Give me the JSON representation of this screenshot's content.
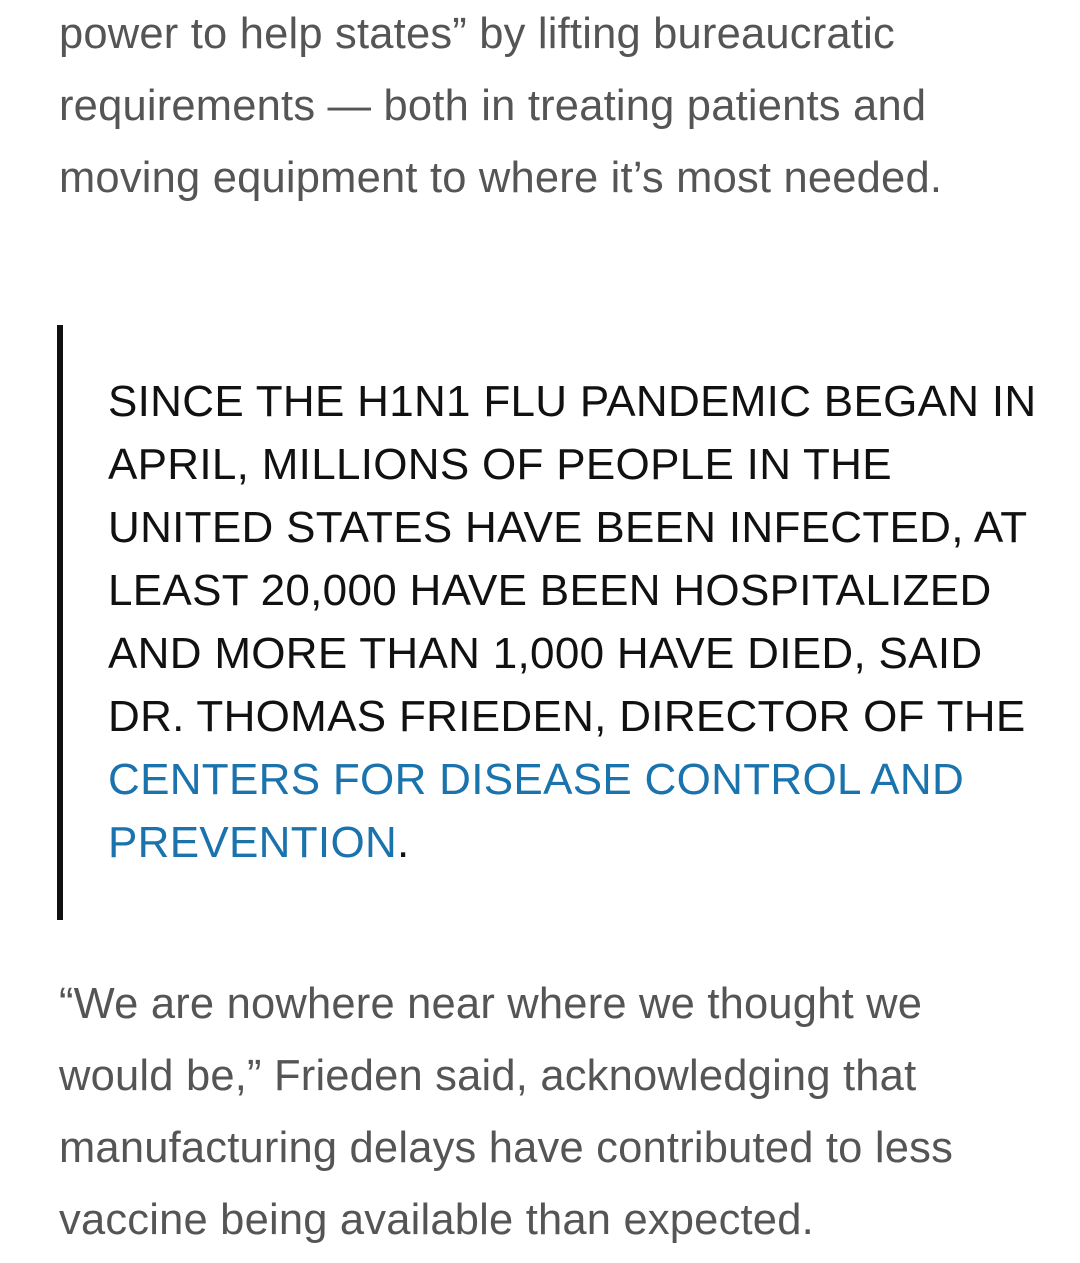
{
  "article": {
    "paragraph_top": "power to help states” by lifting bureaucratic requirements — both in treating patients and moving equipment to where it’s most needed.",
    "pullquote": {
      "text_before_link": "Since the H1N1 flu pandemic began in April, millions of people in the United States have been infected, at least 20,000 have been hospitalized and more than 1,000 have died, said Dr. Thomas Frieden, director of the ",
      "link_text": "Centers for Disease Control and Prevention",
      "text_after_link": "."
    },
    "paragraph_bottom": "“We are nowhere near where we thought we would be,” Frieden said, acknowledging that manufacturing delays have contributed to less vaccine being available than expected."
  },
  "colors": {
    "body_text": "#555555",
    "quote_text": "#111111",
    "quote_border": "#111111",
    "link": "#1a73ad",
    "background": "#ffffff"
  }
}
